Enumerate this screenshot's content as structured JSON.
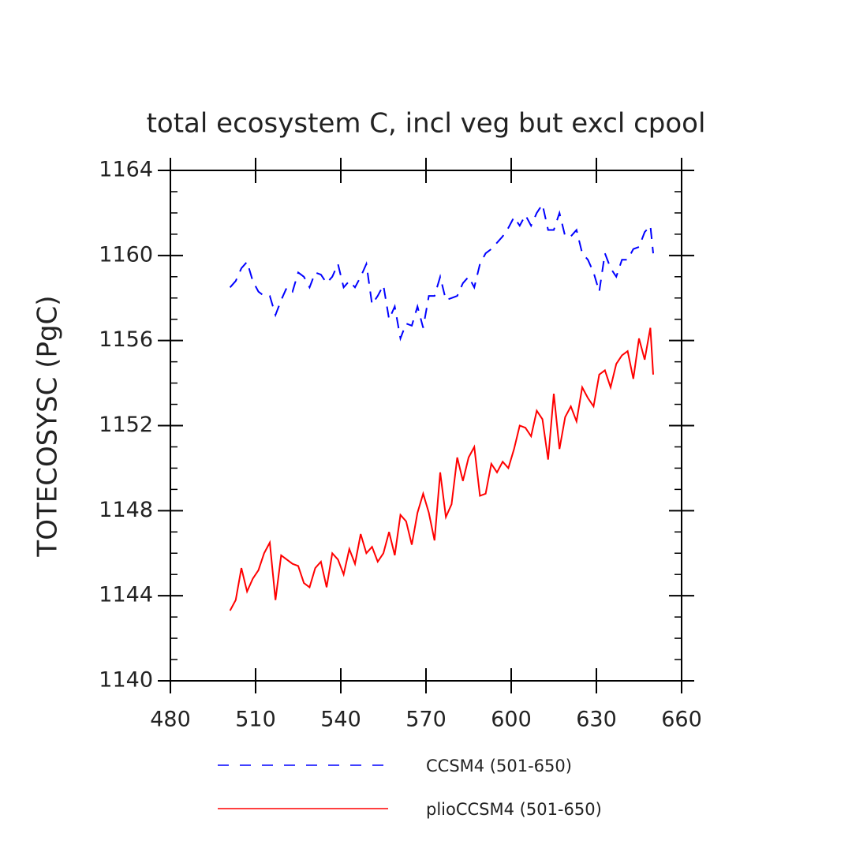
{
  "chart_data": {
    "type": "line",
    "title": "total ecosystem C, incl veg but excl cpool",
    "y_label": "TOTECOSYSC  (PgC)",
    "xlim": [
      480,
      660
    ],
    "xticks": [
      480,
      510,
      540,
      570,
      600,
      630,
      660
    ],
    "ylim": [
      1140,
      1164
    ],
    "yticks": [
      1140,
      1144,
      1148,
      1152,
      1156,
      1160,
      1164
    ],
    "yminorticks": [
      1141,
      1142,
      1143,
      1145,
      1146,
      1147,
      1149,
      1150,
      1151,
      1153,
      1154,
      1155,
      1157,
      1158,
      1159,
      1161,
      1162,
      1163
    ],
    "grid": false,
    "legend": "bottom",
    "x": [
      501,
      503,
      505,
      507,
      509,
      511,
      513,
      515,
      517,
      519,
      521,
      523,
      525,
      527,
      529,
      531,
      533,
      535,
      537,
      539,
      541,
      543,
      545,
      547,
      549,
      551,
      553,
      555,
      557,
      559,
      561,
      563,
      565,
      567,
      569,
      571,
      573,
      575,
      577,
      579,
      581,
      583,
      585,
      587,
      589,
      591,
      593,
      595,
      597,
      599,
      601,
      603,
      605,
      607,
      609,
      611,
      613,
      615,
      617,
      619,
      621,
      623,
      625,
      627,
      629,
      631,
      633,
      635,
      637,
      639,
      641,
      643,
      645,
      647,
      649,
      650
    ],
    "series": [
      {
        "name": "CCSM4 (501-650)",
        "color": "#0000ff",
        "line_style": "dashed",
        "values": [
          1158.5,
          1158.8,
          1159.4,
          1159.7,
          1158.8,
          1158.3,
          1158.1,
          1158.1,
          1157.2,
          1157.9,
          1158.5,
          1158.3,
          1159.2,
          1159.0,
          1158.5,
          1159.2,
          1159.1,
          1158.7,
          1159.0,
          1159.6,
          1158.5,
          1158.8,
          1158.5,
          1159.0,
          1159.6,
          1157.7,
          1158.1,
          1158.6,
          1157.0,
          1157.6,
          1156.1,
          1156.8,
          1156.7,
          1157.6,
          1156.6,
          1158.1,
          1158.1,
          1159.0,
          1157.9,
          1158.0,
          1158.1,
          1158.7,
          1159.0,
          1158.5,
          1159.6,
          1160.1,
          1160.3,
          1160.6,
          1160.9,
          1161.3,
          1161.8,
          1161.4,
          1161.9,
          1161.4,
          1162.0,
          1162.4,
          1161.2,
          1161.2,
          1162.0,
          1160.9,
          1160.9,
          1161.2,
          1160.1,
          1159.8,
          1159.2,
          1158.3,
          1160.1,
          1159.4,
          1159.0,
          1159.8,
          1159.8,
          1160.3,
          1160.4,
          1161.1,
          1161.4,
          1160.1
        ]
      },
      {
        "name": "plioCCSM4 (501-650)",
        "color": "#ff0000",
        "line_style": "solid",
        "values": [
          1143.3,
          1143.8,
          1145.3,
          1144.2,
          1144.8,
          1145.2,
          1146.0,
          1146.5,
          1143.8,
          1145.9,
          1145.7,
          1145.5,
          1145.4,
          1144.6,
          1144.4,
          1145.3,
          1145.6,
          1144.4,
          1146.0,
          1145.7,
          1145.0,
          1146.2,
          1145.5,
          1146.9,
          1146.0,
          1146.3,
          1145.6,
          1146.0,
          1147.0,
          1145.9,
          1147.8,
          1147.5,
          1146.4,
          1147.9,
          1148.8,
          1147.9,
          1146.6,
          1149.8,
          1147.7,
          1148.3,
          1150.5,
          1149.4,
          1150.5,
          1151.0,
          1148.7,
          1148.8,
          1150.2,
          1149.8,
          1150.3,
          1150.0,
          1150.9,
          1152.0,
          1151.9,
          1151.5,
          1152.7,
          1152.3,
          1150.4,
          1153.5,
          1150.9,
          1152.4,
          1152.9,
          1152.2,
          1153.8,
          1153.3,
          1152.9,
          1154.4,
          1154.6,
          1153.8,
          1154.9,
          1155.3,
          1155.5,
          1154.2,
          1156.1,
          1155.1,
          1156.6,
          1154.4
        ]
      }
    ]
  }
}
